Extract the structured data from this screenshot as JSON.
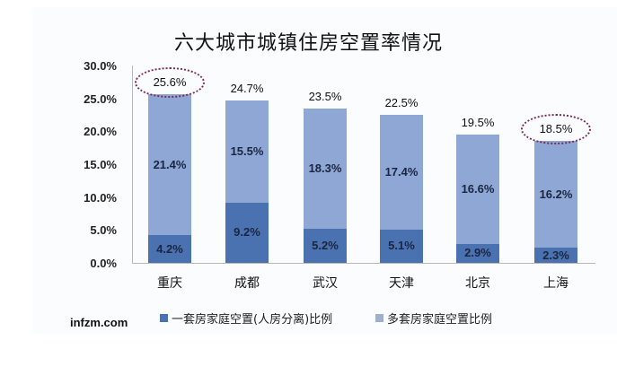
{
  "title": "六大城市城镇住房空置率情况",
  "source": "infzm.com",
  "legend": {
    "single": "一套房家庭空置(人房分离)比例",
    "multi": "多套房家庭空置比例"
  },
  "colors": {
    "single": "#4a72b0",
    "multi": "#8ea7d4",
    "highlight": "#7a2a5a"
  },
  "yticks": [
    "30.0%",
    "25.0%",
    "20.0%",
    "15.0%",
    "10.0%",
    "5.0%",
    "0.0%"
  ],
  "bars": [
    {
      "city": "重庆",
      "single": "4.2%",
      "multi": "21.4%",
      "total": "25.6%"
    },
    {
      "city": "成都",
      "single": "9.2%",
      "multi": "15.5%",
      "total": "24.7%"
    },
    {
      "city": "武汉",
      "single": "5.2%",
      "multi": "18.3%",
      "total": "23.5%"
    },
    {
      "city": "天津",
      "single": "5.1%",
      "multi": "17.4%",
      "total": "22.5%"
    },
    {
      "city": "北京",
      "single": "2.9%",
      "multi": "16.6%",
      "total": "19.5%"
    },
    {
      "city": "上海",
      "single": "2.3%",
      "multi": "16.2%",
      "total": "18.5%"
    }
  ],
  "chart_data": {
    "type": "bar",
    "stacked": true,
    "title": "六大城市城镇住房空置率情况",
    "categories": [
      "重庆",
      "成都",
      "武汉",
      "天津",
      "北京",
      "上海"
    ],
    "series": [
      {
        "name": "一套房家庭空置(人房分离)比例",
        "values": [
          4.2,
          9.2,
          5.2,
          5.1,
          2.9,
          2.3
        ]
      },
      {
        "name": "多套房家庭空置比例",
        "values": [
          21.4,
          15.5,
          18.3,
          17.4,
          16.6,
          16.2
        ]
      }
    ],
    "totals": [
      25.6,
      24.7,
      23.5,
      22.5,
      19.5,
      18.5
    ],
    "highlighted": [
      "重庆",
      "上海"
    ],
    "xlabel": "",
    "ylabel": "",
    "ylim": [
      0,
      30
    ],
    "yticks": [
      0,
      5,
      10,
      15,
      20,
      25,
      30
    ],
    "ytick_format": "0.0%",
    "grid": false,
    "legend_position": "bottom",
    "annotation": "infzm.com"
  }
}
